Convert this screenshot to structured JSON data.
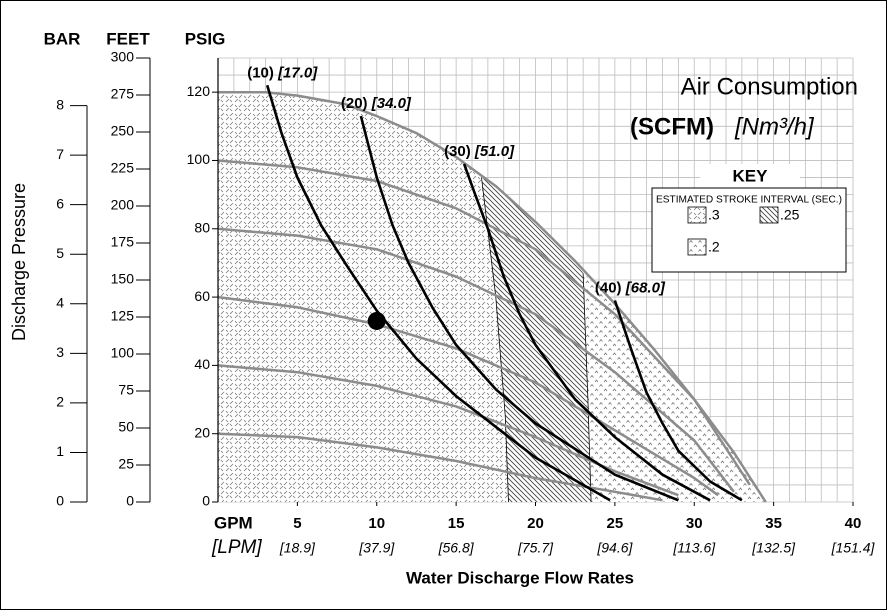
{
  "chart_data": {
    "type": "line",
    "title": "Air Consumption",
    "subtitle": "(SCFM)",
    "subtitle_metric": "[Nm³/h]",
    "y_axis_label": "Discharge Pressure",
    "x_axis_label": "Water Discharge Flow Rates",
    "x_unit": "GPM",
    "x2_unit": "[LPM]",
    "y_unit": "PSIG",
    "xlim": [
      0,
      40
    ],
    "xticks": [
      5,
      10,
      15,
      20,
      25,
      30,
      35,
      40
    ],
    "x2_labels": [
      "[18.9]",
      "[37.9]",
      "[56.8]",
      "[75.7]",
      "[94.6]",
      "[113.6]",
      "[132.5]",
      "[151.4]"
    ],
    "ylim": [
      0,
      130
    ],
    "yticks": [
      0,
      20,
      40,
      60,
      80,
      100,
      120
    ],
    "bar_axis": {
      "label": "BAR",
      "lim": [
        0,
        8.96
      ],
      "ticks": [
        0,
        1,
        2,
        3,
        4,
        5,
        6,
        7,
        8
      ]
    },
    "feet_axis": {
      "label": "FEET",
      "lim": [
        0,
        300
      ],
      "ticks": [
        0,
        25,
        50,
        75,
        100,
        125,
        150,
        175,
        200,
        225,
        250,
        275,
        300
      ]
    },
    "grid": true,
    "grid_x_step": 1,
    "grid_y_step": 5,
    "envelope": {
      "color": "#8c8c8c",
      "x": [
        0,
        3,
        5,
        8,
        10,
        12.5,
        15,
        17.5,
        20,
        22.5,
        25,
        27.5,
        30,
        32.5,
        34.5
      ],
      "y": [
        120,
        120,
        119,
        116.5,
        113,
        108,
        101,
        92.5,
        82,
        70.5,
        58,
        44.5,
        30,
        14.5,
        0
      ]
    },
    "pressure_curves": [
      {
        "color": "#8c8c8c",
        "x": [
          0,
          5,
          10,
          15,
          20,
          25,
          30,
          33.5
        ],
        "values": [
          100,
          98,
          94,
          86,
          74,
          55,
          30,
          5
        ]
      },
      {
        "color": "#8c8c8c",
        "x": [
          0,
          5,
          10,
          15,
          20,
          25,
          30,
          32.5
        ],
        "values": [
          80,
          78,
          74,
          66,
          55,
          38,
          18,
          3
        ]
      },
      {
        "color": "#8c8c8c",
        "x": [
          0,
          5,
          10,
          15,
          20,
          25,
          30,
          31.5
        ],
        "values": [
          60,
          57,
          52,
          45,
          35,
          21,
          7,
          2
        ]
      },
      {
        "color": "#8c8c8c",
        "x": [
          0,
          5,
          10,
          15,
          20,
          25,
          29
        ],
        "values": [
          40,
          38,
          34,
          28,
          19,
          9,
          2
        ]
      },
      {
        "color": "#8c8c8c",
        "x": [
          0,
          5,
          10,
          15,
          20,
          25,
          28
        ],
        "values": [
          20,
          19,
          16,
          12,
          7,
          3,
          0.5
        ]
      }
    ],
    "series": [
      {
        "name": "(10)",
        "metric": "[17.0]",
        "color": "#000000",
        "x": [
          3.1,
          4,
          5,
          6.5,
          8,
          10,
          12.5,
          15,
          20,
          24.7
        ],
        "values": [
          122,
          108,
          95,
          81,
          70,
          56,
          42,
          31,
          13,
          0.5
        ]
      },
      {
        "name": "(20)",
        "metric": "[34.0]",
        "color": "#000000",
        "x": [
          9,
          9.5,
          10,
          11,
          12,
          13.5,
          15,
          17.5,
          20,
          25,
          29
        ],
        "values": [
          113,
          104,
          95,
          81,
          70,
          57,
          46,
          33,
          23,
          8,
          0.5
        ]
      },
      {
        "name": "(30)",
        "metric": "[51.0]",
        "color": "#000000",
        "x": [
          15.5,
          16.2,
          17,
          18,
          19,
          20,
          22.5,
          25,
          28,
          31
        ],
        "values": [
          99,
          90,
          80,
          66,
          55,
          46,
          30,
          19,
          8,
          0.5
        ]
      },
      {
        "name": "(40)",
        "metric": "[68.0]",
        "color": "#000000",
        "x": [
          25,
          25.5,
          26,
          27,
          28,
          29,
          31,
          33
        ],
        "values": [
          59,
          52,
          45,
          32,
          23,
          15,
          6,
          0.5
        ]
      }
    ],
    "operating_point": {
      "x": 10,
      "y": 53
    },
    "zone_boundaries": [
      {
        "x": [
          16.6,
          17.5,
          18.1,
          18.3
        ],
        "y": [
          95,
          60,
          25,
          0
        ]
      },
      {
        "x": [
          23.0,
          23.3,
          23.5
        ],
        "y": [
          67,
          30,
          0
        ]
      }
    ],
    "key": {
      "title": "KEY",
      "subtitle": "ESTIMATED STROKE INTERVAL (SEC.)",
      "zones": [
        {
          "label": ".3",
          "pattern": "cross"
        },
        {
          "label": ".25",
          "pattern": "hatch"
        },
        {
          "label": ".2",
          "pattern": "dots"
        }
      ]
    }
  }
}
